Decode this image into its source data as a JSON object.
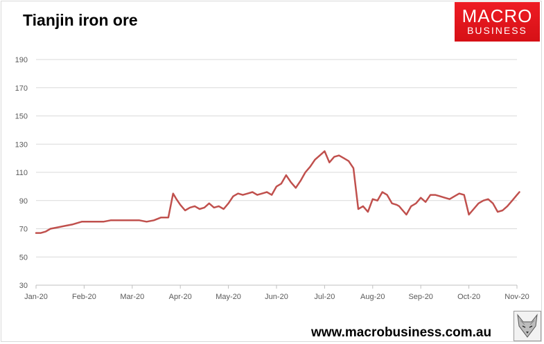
{
  "header": {
    "title": "Tianjin iron ore"
  },
  "logo": {
    "line1": "MACRO",
    "line2": "BUSINESS",
    "bg_color": "#e8141b"
  },
  "footer": {
    "website": "www.macrobusiness.com.au"
  },
  "chart_data": {
    "type": "line",
    "title": "Tianjin iron ore",
    "xlabel": "",
    "ylabel": "",
    "ylim": [
      30,
      190
    ],
    "yticks": [
      30,
      50,
      70,
      90,
      110,
      130,
      150,
      170,
      190
    ],
    "xticks": [
      "Jan-20",
      "Feb-20",
      "Mar-20",
      "Apr-20",
      "May-20",
      "Jun-20",
      "Jul-20",
      "Aug-20",
      "Sep-20",
      "Oct-20",
      "Nov-20"
    ],
    "grid": true,
    "legend": "none",
    "line_color": "#c0504d",
    "series": [
      {
        "x": [
          0,
          0.1,
          0.2,
          0.3,
          0.45,
          0.6,
          0.75,
          0.95,
          1.1,
          1.25,
          1.4,
          1.55,
          1.7,
          1.85,
          2.0,
          2.15,
          2.3,
          2.45,
          2.6,
          2.75,
          2.85,
          2.92,
          3.0,
          3.1,
          3.2,
          3.3,
          3.4,
          3.5,
          3.6,
          3.7,
          3.8,
          3.9,
          4.0,
          4.1,
          4.2,
          4.3,
          4.4,
          4.5,
          4.6,
          4.7,
          4.8,
          4.9,
          5.0,
          5.1,
          5.2,
          5.3,
          5.4,
          5.5,
          5.6,
          5.7,
          5.8,
          5.9,
          6.0,
          6.1,
          6.2,
          6.3,
          6.4,
          6.5,
          6.6,
          6.7,
          6.8,
          6.9,
          7.0,
          7.1,
          7.2,
          7.3,
          7.4,
          7.5,
          7.55,
          7.6,
          7.7,
          7.8,
          7.9,
          8.0,
          8.1,
          8.2,
          8.3,
          8.4,
          8.5,
          8.6,
          8.7,
          8.8,
          8.9,
          9.0,
          9.1,
          9.2,
          9.3,
          9.4,
          9.5,
          9.6,
          9.7,
          9.8,
          9.9,
          10.0,
          10.05
        ],
        "y": [
          67,
          67,
          68,
          70,
          71,
          72,
          73,
          75,
          75,
          75,
          75,
          76,
          76,
          76,
          76,
          76,
          75,
          76,
          78,
          78,
          95,
          91,
          87,
          83,
          85,
          86,
          84,
          85,
          88,
          85,
          86,
          84,
          88,
          93,
          95,
          94,
          95,
          96,
          94,
          95,
          96,
          94,
          100,
          102,
          108,
          103,
          99,
          104,
          110,
          114,
          119,
          122,
          125,
          117,
          121,
          122,
          120,
          118,
          113,
          84,
          86,
          82,
          91,
          90,
          96,
          94,
          88,
          87,
          86,
          84,
          80,
          86,
          88,
          92,
          89,
          94,
          94,
          93,
          92,
          91,
          93,
          95,
          94,
          80,
          84,
          88,
          90,
          91,
          88,
          82,
          83,
          86,
          90,
          94,
          96
        ]
      }
    ]
  }
}
